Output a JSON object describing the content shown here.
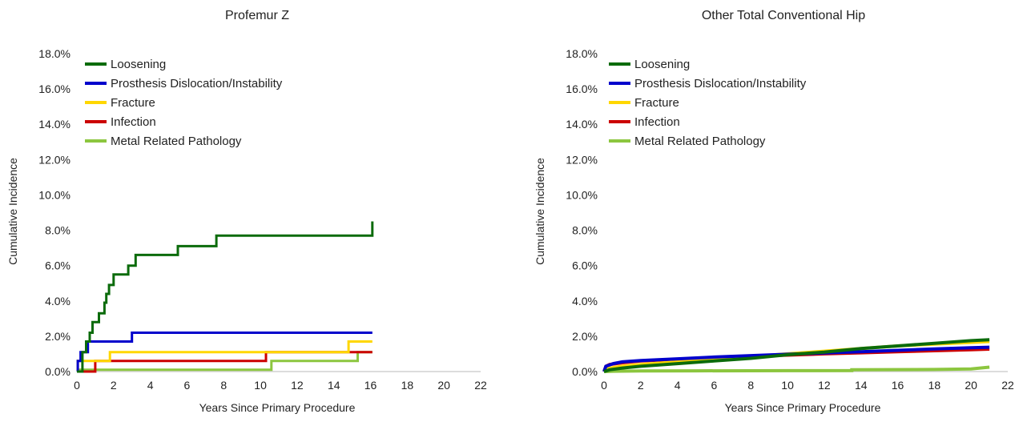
{
  "chart_data": [
    {
      "type": "line",
      "title": "Profemur Z",
      "xlabel": "Years Since Primary Procedure",
      "ylabel": "Cumulative Incidence",
      "xlim": [
        0,
        22
      ],
      "ylim": [
        0,
        18
      ],
      "xticks": [
        "0",
        "2",
        "4",
        "6",
        "8",
        "10",
        "12",
        "14",
        "16",
        "18",
        "20",
        "22"
      ],
      "yticks": [
        "0.0%",
        "2.0%",
        "4.0%",
        "6.0%",
        "8.0%",
        "10.0%",
        "12.0%",
        "14.0%",
        "16.0%",
        "18.0%"
      ],
      "grid": false,
      "legend_position": "top-left",
      "series": [
        {
          "name": "Loosening",
          "color": "#0b6b0b",
          "points": [
            [
              0,
              0
            ],
            [
              0.3,
              0
            ],
            [
              0.3,
              1.1
            ],
            [
              0.5,
              1.1
            ],
            [
              0.5,
              1.7
            ],
            [
              0.7,
              1.7
            ],
            [
              0.7,
              2.2
            ],
            [
              0.85,
              2.2
            ],
            [
              0.85,
              2.8
            ],
            [
              1.2,
              2.8
            ],
            [
              1.2,
              3.3
            ],
            [
              1.5,
              3.3
            ],
            [
              1.5,
              3.9
            ],
            [
              1.6,
              3.9
            ],
            [
              1.6,
              4.4
            ],
            [
              1.75,
              4.4
            ],
            [
              1.75,
              4.9
            ],
            [
              2.0,
              4.9
            ],
            [
              2.0,
              5.5
            ],
            [
              2.8,
              5.5
            ],
            [
              2.8,
              6.0
            ],
            [
              3.2,
              6.0
            ],
            [
              3.2,
              6.6
            ],
            [
              5.5,
              6.6
            ],
            [
              5.5,
              7.1
            ],
            [
              7.6,
              7.1
            ],
            [
              7.6,
              7.7
            ],
            [
              16.1,
              7.7
            ],
            [
              16.1,
              8.5
            ]
          ]
        },
        {
          "name": "Prosthesis Dislocation/Instability",
          "color": "#0000cc",
          "points": [
            [
              0,
              0
            ],
            [
              0.05,
              0
            ],
            [
              0.05,
              0.6
            ],
            [
              0.2,
              0.6
            ],
            [
              0.2,
              1.1
            ],
            [
              0.6,
              1.1
            ],
            [
              0.6,
              1.7
            ],
            [
              3.0,
              1.7
            ],
            [
              3.0,
              2.2
            ],
            [
              16.1,
              2.2
            ]
          ]
        },
        {
          "name": "Fracture",
          "color": "#ffd700",
          "points": [
            [
              0,
              0
            ],
            [
              0.05,
              0
            ],
            [
              0.05,
              0.6
            ],
            [
              1.8,
              0.6
            ],
            [
              1.8,
              1.1
            ],
            [
              14.8,
              1.1
            ],
            [
              14.8,
              1.7
            ],
            [
              16.1,
              1.7
            ]
          ]
        },
        {
          "name": "Infection",
          "color": "#cc0000",
          "points": [
            [
              0,
              0
            ],
            [
              1.0,
              0
            ],
            [
              1.0,
              0.6
            ],
            [
              10.3,
              0.6
            ],
            [
              10.3,
              1.1
            ],
            [
              16.1,
              1.1
            ]
          ]
        },
        {
          "name": "Metal Related Pathology",
          "color": "#8cc63f",
          "points": [
            [
              0,
              0
            ],
            [
              0.05,
              0
            ],
            [
              0.05,
              0.1
            ],
            [
              10.6,
              0.1
            ],
            [
              10.6,
              0.6
            ],
            [
              15.3,
              0.6
            ],
            [
              15.3,
              1.1
            ],
            [
              16.1,
              1.1
            ]
          ]
        }
      ]
    },
    {
      "type": "line",
      "title": "Other Total Conventional Hip",
      "xlabel": "Years Since Primary Procedure",
      "ylabel": "Cumulative Incidence",
      "xlim": [
        0,
        22
      ],
      "ylim": [
        0,
        18
      ],
      "xticks": [
        "0",
        "2",
        "4",
        "6",
        "8",
        "10",
        "12",
        "14",
        "16",
        "18",
        "20",
        "22"
      ],
      "yticks": [
        "0.0%",
        "2.0%",
        "4.0%",
        "6.0%",
        "8.0%",
        "10.0%",
        "12.0%",
        "14.0%",
        "16.0%",
        "18.0%"
      ],
      "grid": false,
      "legend_position": "top-left",
      "series": [
        {
          "name": "Loosening",
          "color": "#0b6b0b",
          "points": [
            [
              0,
              0
            ],
            [
              0.3,
              0.1
            ],
            [
              1,
              0.2
            ],
            [
              2,
              0.3
            ],
            [
              4,
              0.45
            ],
            [
              6,
              0.6
            ],
            [
              8,
              0.75
            ],
            [
              10,
              0.95
            ],
            [
              12,
              1.1
            ],
            [
              14,
              1.3
            ],
            [
              16,
              1.45
            ],
            [
              18,
              1.6
            ],
            [
              20,
              1.75
            ],
            [
              21,
              1.8
            ]
          ]
        },
        {
          "name": "Prosthesis Dislocation/Instability",
          "color": "#0000cc",
          "points": [
            [
              0,
              0
            ],
            [
              0.1,
              0.3
            ],
            [
              0.5,
              0.45
            ],
            [
              1,
              0.55
            ],
            [
              2,
              0.62
            ],
            [
              4,
              0.72
            ],
            [
              6,
              0.82
            ],
            [
              8,
              0.9
            ],
            [
              10,
              0.98
            ],
            [
              12,
              1.05
            ],
            [
              14,
              1.12
            ],
            [
              16,
              1.2
            ],
            [
              18,
              1.28
            ],
            [
              20,
              1.35
            ],
            [
              21,
              1.38
            ]
          ]
        },
        {
          "name": "Fracture",
          "color": "#ffd700",
          "points": [
            [
              0,
              0
            ],
            [
              0.1,
              0.15
            ],
            [
              0.5,
              0.22
            ],
            [
              1,
              0.3
            ],
            [
              2,
              0.4
            ],
            [
              4,
              0.55
            ],
            [
              6,
              0.7
            ],
            [
              8,
              0.85
            ],
            [
              10,
              1.0
            ],
            [
              12,
              1.15
            ],
            [
              14,
              1.3
            ],
            [
              16,
              1.45
            ],
            [
              18,
              1.55
            ],
            [
              20,
              1.65
            ],
            [
              21,
              1.7
            ]
          ]
        },
        {
          "name": "Infection",
          "color": "#cc0000",
          "points": [
            [
              0,
              0
            ],
            [
              0.1,
              0.3
            ],
            [
              0.3,
              0.4
            ],
            [
              1,
              0.5
            ],
            [
              2,
              0.6
            ],
            [
              4,
              0.7
            ],
            [
              6,
              0.78
            ],
            [
              8,
              0.86
            ],
            [
              10,
              0.93
            ],
            [
              12,
              1.0
            ],
            [
              14,
              1.06
            ],
            [
              16,
              1.12
            ],
            [
              18,
              1.18
            ],
            [
              20,
              1.24
            ],
            [
              21,
              1.27
            ]
          ]
        },
        {
          "name": "Metal Related Pathology",
          "color": "#8cc63f",
          "points": [
            [
              0,
              0
            ],
            [
              0.5,
              0.02
            ],
            [
              2,
              0.03
            ],
            [
              5,
              0.04
            ],
            [
              10,
              0.05
            ],
            [
              13.5,
              0.06
            ],
            [
              13.5,
              0.1
            ],
            [
              18,
              0.12
            ],
            [
              20,
              0.15
            ],
            [
              21,
              0.25
            ]
          ]
        }
      ]
    }
  ]
}
